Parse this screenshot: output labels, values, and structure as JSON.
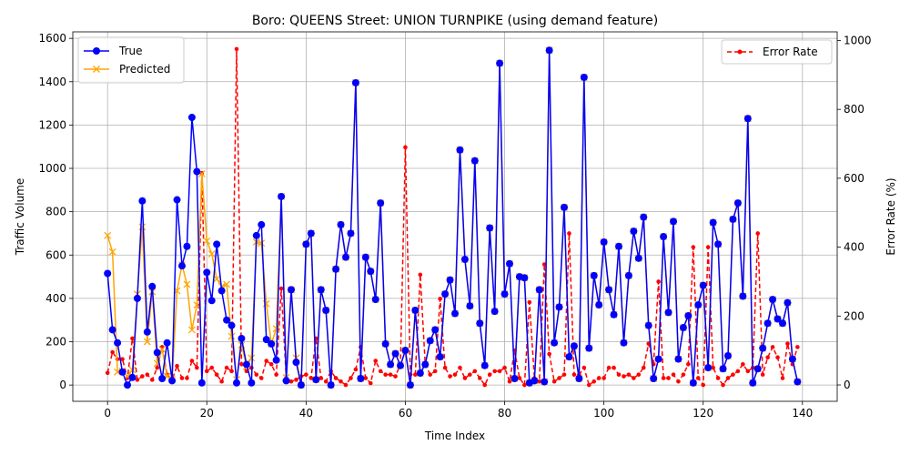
{
  "chart_data": {
    "type": "line",
    "title": "Boro: QUEENS Street: UNION TURNPIKE (using demand feature)",
    "xlabel": "Time Index",
    "ylabel": "Traffic Volume",
    "y2label": "Error Rate (%)",
    "xlim": [
      -7,
      147
    ],
    "ylim": [
      -75,
      1630
    ],
    "y2lim": [
      -47.5,
      1025
    ],
    "xticks": [
      0,
      20,
      40,
      60,
      80,
      100,
      120,
      140
    ],
    "yticks": [
      0,
      200,
      400,
      600,
      800,
      1000,
      1200,
      1400,
      1600
    ],
    "y2ticks": [
      0,
      200,
      400,
      600,
      800,
      1000
    ],
    "grid": true,
    "legend_left": {
      "placement": "upper left",
      "entries": [
        "True",
        "Predicted"
      ]
    },
    "legend_right": {
      "placement": "upper right",
      "entries": [
        "Error Rate"
      ]
    },
    "colors": {
      "true": "#0000ff",
      "predicted": "#ffa500",
      "error": "#ff0000"
    },
    "x": [
      0,
      1,
      2,
      3,
      4,
      5,
      6,
      7,
      8,
      9,
      10,
      11,
      12,
      13,
      14,
      15,
      16,
      17,
      18,
      19,
      20,
      21,
      22,
      23,
      24,
      25,
      26,
      27,
      28,
      29,
      30,
      31,
      32,
      33,
      34,
      35,
      36,
      37,
      38,
      39,
      40,
      41,
      42,
      43,
      44,
      45,
      46,
      47,
      48,
      49,
      50,
      51,
      52,
      53,
      54,
      55,
      56,
      57,
      58,
      59,
      60,
      61,
      62,
      63,
      64,
      65,
      66,
      67,
      68,
      69,
      70,
      71,
      72,
      73,
      74,
      75,
      76,
      77,
      78,
      79,
      80,
      81,
      82,
      83,
      84,
      85,
      86,
      87,
      88,
      89,
      90,
      91,
      92,
      93,
      94,
      95,
      96,
      97,
      98,
      99,
      100,
      101,
      102,
      103,
      104,
      105,
      106,
      107,
      108,
      109,
      110,
      111,
      112,
      113,
      114,
      115,
      116,
      117,
      118,
      119,
      120,
      121,
      122,
      123,
      124,
      125,
      126,
      127,
      128,
      129,
      130,
      131,
      132,
      133,
      134,
      135,
      136,
      137,
      138,
      139
    ],
    "series": [
      {
        "name": "True",
        "axis": "left",
        "style": "solid-circle",
        "values": [
          515,
          255,
          195,
          60,
          0,
          35,
          400,
          850,
          245,
          455,
          150,
          30,
          195,
          20,
          855,
          550,
          640,
          1235,
          985,
          10,
          520,
          390,
          650,
          435,
          300,
          275,
          10,
          215,
          95,
          10,
          690,
          740,
          210,
          190,
          115,
          870,
          20,
          440,
          105,
          0,
          650,
          700,
          25,
          440,
          345,
          0,
          535,
          740,
          590,
          700,
          1395,
          30,
          590,
          525,
          395,
          840,
          190,
          95,
          145,
          90,
          160,
          0,
          345,
          55,
          95,
          205,
          255,
          130,
          420,
          485,
          330,
          1085,
          580,
          365,
          1035,
          285,
          90,
          725,
          340,
          1485,
          420,
          560,
          30,
          500,
          495,
          10,
          20,
          440,
          15,
          1545,
          195,
          360,
          820,
          130,
          180,
          30,
          1420,
          170,
          505,
          370,
          660,
          440,
          325,
          640,
          195,
          505,
          710,
          585,
          775,
          275,
          30,
          120,
          685,
          335,
          755,
          120,
          265,
          320,
          10,
          370,
          460,
          80,
          750,
          650,
          75,
          135,
          765,
          840,
          410,
          1230,
          10,
          75,
          170,
          285,
          395,
          305,
          285,
          380,
          120,
          15
        ]
      },
      {
        "name": "Predicted",
        "axis": "left",
        "style": "solid-x",
        "values": [
          690,
          615,
          60,
          65,
          40,
          70,
          420,
          730,
          200,
          430,
          100,
          165,
          40,
          25,
          435,
          555,
          465,
          255,
          370,
          975,
          665,
          605,
          490,
          455,
          465,
          225,
          25,
          185,
          85,
          125,
          660,
          655,
          375,
          190,
          260,
          870,
          35,
          440,
          125,
          0,
          650,
          700,
          25,
          440,
          345,
          0,
          535,
          740,
          590,
          700,
          1395,
          30,
          590,
          525,
          395,
          840,
          190,
          95,
          145,
          90,
          160,
          0,
          345,
          55,
          95,
          205,
          255,
          130,
          420,
          485,
          330,
          1085,
          580,
          365,
          1035,
          285,
          90,
          725,
          340,
          1485,
          420,
          560,
          30,
          500,
          495,
          10,
          20,
          440,
          15,
          1545,
          195,
          360,
          820,
          130,
          180,
          30,
          1420,
          170,
          505,
          370,
          660,
          440,
          325,
          640,
          195,
          505,
          710,
          585,
          775,
          275,
          30,
          120,
          685,
          335,
          755,
          120,
          265,
          320,
          10,
          370,
          460,
          80,
          750,
          650,
          75,
          135,
          765,
          840,
          410,
          1230,
          10,
          75,
          170,
          285,
          395,
          305,
          285,
          380,
          120,
          15
        ]
      },
      {
        "name": "Error Rate",
        "axis": "right",
        "style": "dashed-dot",
        "values": [
          35,
          95,
          75,
          75,
          20,
          135,
          15,
          25,
          30,
          15,
          50,
          110,
          30,
          15,
          55,
          20,
          20,
          70,
          50,
          615,
          40,
          50,
          30,
          10,
          50,
          40,
          975,
          60,
          40,
          50,
          30,
          20,
          70,
          60,
          30,
          280,
          20,
          10,
          15,
          25,
          30,
          20,
          135,
          20,
          10,
          40,
          20,
          10,
          0,
          20,
          45,
          110,
          20,
          5,
          70,
          40,
          30,
          30,
          25,
          60,
          690,
          30,
          30,
          320,
          60,
          30,
          40,
          250,
          50,
          25,
          30,
          50,
          20,
          30,
          40,
          20,
          0,
          30,
          40,
          40,
          50,
          10,
          100,
          20,
          0,
          240,
          20,
          10,
          350,
          90,
          10,
          20,
          30,
          440,
          30,
          30,
          50,
          0,
          10,
          20,
          20,
          50,
          50,
          30,
          25,
          30,
          20,
          30,
          50,
          120,
          60,
          300,
          20,
          20,
          30,
          10,
          30,
          60,
          400,
          20,
          0,
          400,
          50,
          20,
          0,
          20,
          30,
          40,
          60,
          40,
          50,
          440,
          30,
          80,
          110,
          80,
          20,
          120,
          60,
          110
        ]
      }
    ]
  }
}
